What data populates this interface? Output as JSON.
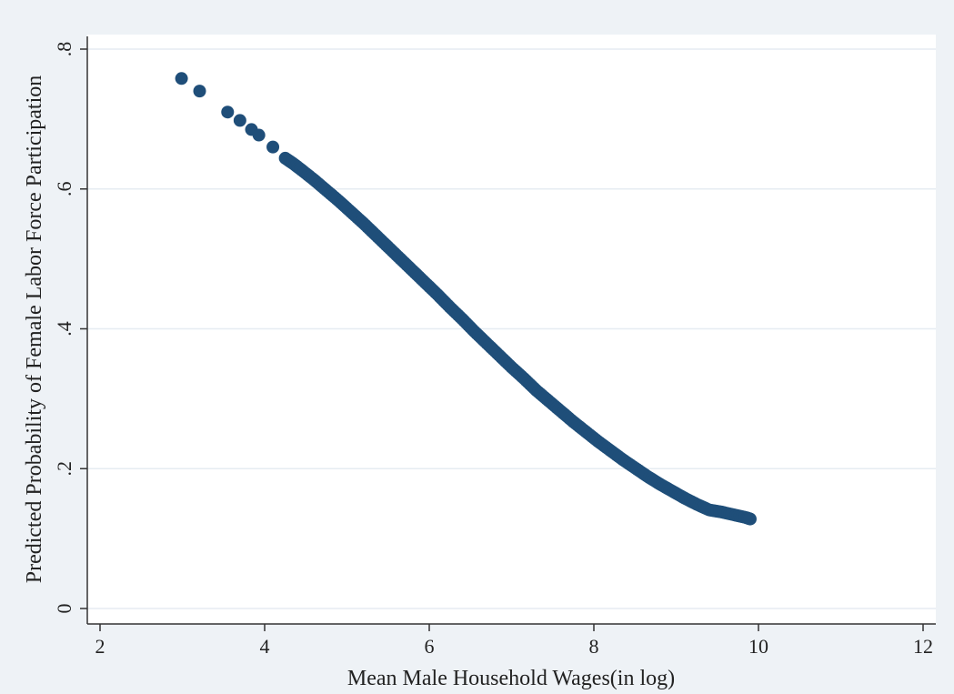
{
  "chart_data": {
    "type": "scatter",
    "title": "",
    "xlabel": "Mean Male Household Wages(in log)",
    "ylabel": "Predicted Probability of Female Labor Force Participation",
    "xlim": [
      2,
      12
    ],
    "ylim": [
      0,
      0.8
    ],
    "x_ticks": [
      2,
      4,
      6,
      8,
      10,
      12
    ],
    "x_tick_labels": [
      "2",
      "4",
      "6",
      "8",
      "10",
      "12"
    ],
    "y_ticks": [
      0,
      0.2,
      0.4,
      0.6,
      0.8
    ],
    "y_tick_labels": [
      "0",
      ".2",
      ".4",
      ".6",
      ".8"
    ],
    "grid": "horizontal",
    "legend": "none",
    "marker_color": "#1f4e79",
    "grid_color": "#e6ecf2",
    "series": [
      {
        "x": [
          2.99,
          3.21,
          3.55,
          3.7,
          3.84,
          3.93,
          4.1,
          4.25,
          4.35,
          4.45,
          4.6,
          4.75,
          4.9,
          5.05,
          5.2,
          5.35,
          5.5,
          5.65,
          5.8,
          5.95,
          6.1,
          6.25,
          6.4,
          6.55,
          6.7,
          6.85,
          7.0,
          7.15,
          7.3,
          7.45,
          7.6,
          7.75,
          7.9,
          8.05,
          8.2,
          8.35,
          8.5,
          8.65,
          8.8,
          8.95,
          9.1,
          9.25,
          9.4,
          9.55,
          9.7,
          9.85,
          9.9
        ],
        "y": [
          0.758,
          0.74,
          0.71,
          0.698,
          0.685,
          0.677,
          0.66,
          0.644,
          0.636,
          0.627,
          0.613,
          0.598,
          0.583,
          0.567,
          0.551,
          0.534,
          0.517,
          0.5,
          0.483,
          0.466,
          0.449,
          0.431,
          0.414,
          0.396,
          0.379,
          0.362,
          0.345,
          0.329,
          0.312,
          0.297,
          0.282,
          0.267,
          0.253,
          0.239,
          0.226,
          0.213,
          0.201,
          0.189,
          0.178,
          0.168,
          0.158,
          0.149,
          0.141,
          0.138,
          0.134,
          0.13,
          0.128
        ]
      }
    ]
  }
}
